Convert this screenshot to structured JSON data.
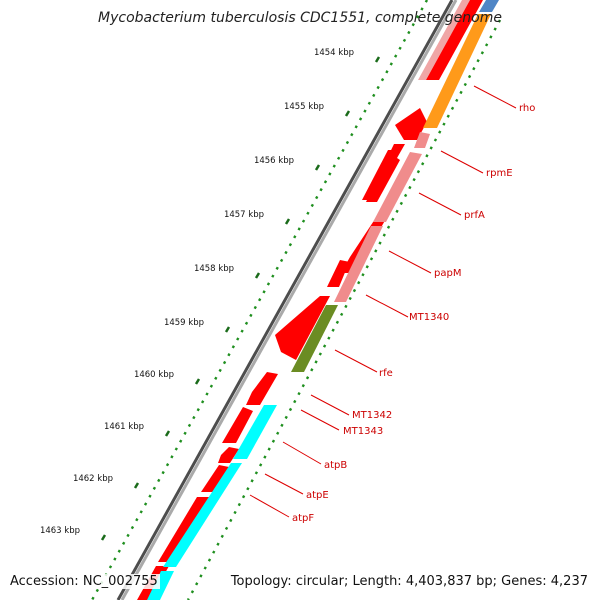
{
  "title": "Mycobacterium tuberculosis CDC1551, complete genome",
  "footer": {
    "accession_label": "Accession:",
    "accession": "NC_002755",
    "topology_label": "Topology:",
    "topology": "circular",
    "length_label": "Length:",
    "length": "4,403,837 bp",
    "genes_label": "Genes:",
    "genes": "4,237"
  },
  "ticks": [
    "1454 kbp",
    "1455 kbp",
    "1456 kbp",
    "1457 kbp",
    "1458 kbp",
    "1459 kbp",
    "1460 kbp",
    "1461 kbp",
    "1462 kbp",
    "1463 kbp"
  ],
  "gene_labels": [
    "rho",
    "rpmE",
    "prfA",
    "papM",
    "MT1340",
    "rfe",
    "MT1342",
    "MT1343",
    "atpB",
    "atpE",
    "atpF"
  ],
  "colors": {
    "backbone": "#888888",
    "cds": "#ff0000",
    "label_line": "#dd0000",
    "label_text": "#cc0000",
    "tick_major": "#1a6b1a",
    "tick_minor": "#2a9a2a",
    "pink": "#f08c8c",
    "orange": "#ff9a1a",
    "olive": "#6b8c23",
    "cyan": "#00ffff",
    "blue": "#4f86c6"
  }
}
